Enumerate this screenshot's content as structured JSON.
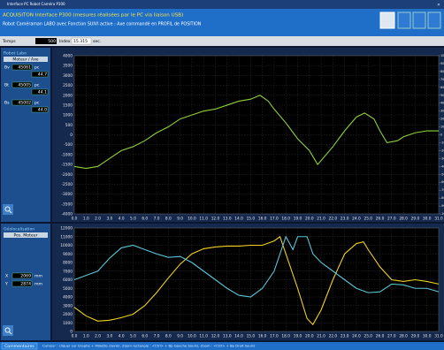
{
  "window": {
    "title": "Interface PC Robot Caméra P300"
  },
  "header": {
    "line1": "ACQUISITON Interface P300 (mesures réalisées par le PC via liaison USB)",
    "line2": "Robot Caméraman LABO avec Fonction SUIVI active : Axe commandé en PROFIL de POSITION"
  },
  "time_bar": {
    "temps_label": "Temps",
    "temps_value": "500",
    "index_label": "Index",
    "index_value": "15.315",
    "unit": "sec."
  },
  "robot_panel": {
    "title": "Robot Labo",
    "subtitle": "Moteur / Axe",
    "rows": [
      {
        "label": "Bv",
        "value": "45061",
        "unit": "pc",
        "sub": "44.7"
      },
      {
        "label": "Bt",
        "value": "45005",
        "unit": "pc",
        "sub": "44.1"
      },
      {
        "label": "Bs",
        "value": "45002",
        "unit": "pc",
        "sub": "44.0"
      }
    ]
  },
  "geo_panel": {
    "title": "Géolocalisation",
    "subtitle": "Pos. Moteur",
    "rows": [
      {
        "label": "X",
        "value": "2069",
        "unit": "mm"
      },
      {
        "label": "Y",
        "value": "2874",
        "unit": "mm"
      }
    ]
  },
  "status": {
    "button": "Commentaires",
    "hint": "Curseur : cliquer sur Graphe + Molette clavier, Zoom rectangle : <Ctrl> + Bp Gauche Souris, Zoom : <Ctrl> + Bp Droit Souris"
  },
  "chart_data": [
    {
      "type": "line",
      "grid": true,
      "xlim": [
        0,
        31
      ],
      "xticks": [
        {
          "value": 0,
          "label": "0.0"
        },
        {
          "value": 1,
          "label": "1.0"
        },
        {
          "value": 2,
          "label": "2.0"
        },
        {
          "value": 3,
          "label": "3.0"
        },
        {
          "value": 4,
          "label": "4.0"
        },
        {
          "value": 5,
          "label": "5.0"
        },
        {
          "value": 6,
          "label": "6.0"
        },
        {
          "value": 7,
          "label": "7.0"
        },
        {
          "value": 8,
          "label": "8.0"
        },
        {
          "value": 9,
          "label": "9.0"
        },
        {
          "value": 10,
          "label": "10.0"
        },
        {
          "value": 11,
          "label": "11.0"
        },
        {
          "value": 12,
          "label": "12.0"
        },
        {
          "value": 13,
          "label": "13.0"
        },
        {
          "value": 14,
          "label": "14.0"
        },
        {
          "value": 15,
          "label": "15.0"
        },
        {
          "value": 16,
          "label": "16.0"
        },
        {
          "value": 17,
          "label": "17.0"
        },
        {
          "value": 18,
          "label": "18.0"
        },
        {
          "value": 19,
          "label": "19.0"
        },
        {
          "value": 20,
          "label": "20.0"
        },
        {
          "value": 21,
          "label": "21.0"
        },
        {
          "value": 22,
          "label": "22.0"
        },
        {
          "value": 23,
          "label": "23.0"
        },
        {
          "value": 24,
          "label": "24.0"
        },
        {
          "value": 25,
          "label": "25.0"
        },
        {
          "value": 26,
          "label": "26.0"
        },
        {
          "value": 27,
          "label": "27.0"
        },
        {
          "value": 28,
          "label": "28.0"
        },
        {
          "value": 29,
          "label": "29.0"
        },
        {
          "value": 30,
          "label": "30.0"
        },
        {
          "value": 31,
          "label": "31.0"
        }
      ],
      "ylim": [
        -4000,
        4000
      ],
      "yticks": [
        4000,
        3500,
        3000,
        2500,
        2000,
        1500,
        1000,
        500,
        0,
        -500,
        -1000,
        -1500,
        -2000,
        -2500,
        -3000,
        -3500,
        -4000
      ],
      "y2lim": [
        -10000,
        10000
      ],
      "y2ticks": [
        -10000,
        -9000,
        -8000,
        -7000,
        -6000,
        -5000,
        -4000,
        -3000,
        -2000,
        -1000,
        0,
        1000,
        2000,
        3000,
        4000,
        5000,
        6000,
        7000,
        8000,
        9000,
        10000
      ],
      "series": [
        {
          "color": "#8fd13a",
          "x": [
            0,
            1,
            2,
            3,
            4,
            5,
            6,
            7,
            8,
            9,
            10,
            11,
            12,
            13,
            14,
            15,
            15.8,
            16.5,
            17,
            18,
            19,
            20,
            20.7,
            21,
            22,
            23,
            24,
            24.7,
            25.5,
            26,
            26.6,
            27.5,
            28,
            29,
            30,
            31
          ],
          "values": [
            -1600,
            -1700,
            -1600,
            -1200,
            -800,
            -600,
            -300,
            100,
            400,
            800,
            1000,
            1200,
            1300,
            1500,
            1700,
            1800,
            2000,
            1700,
            1300,
            600,
            -200,
            -800,
            -1500,
            -1300,
            -600,
            200,
            900,
            1100,
            800,
            200,
            -400,
            -300,
            -100,
            100,
            200,
            200
          ]
        }
      ]
    },
    {
      "type": "line",
      "grid": true,
      "xlim": [
        0,
        31
      ],
      "xticks": [
        {
          "value": 0,
          "label": "0.0"
        },
        {
          "value": 1,
          "label": "1.0"
        },
        {
          "value": 2,
          "label": "2.0"
        },
        {
          "value": 3,
          "label": "3.0"
        },
        {
          "value": 4,
          "label": "4.0"
        },
        {
          "value": 5,
          "label": "5.0"
        },
        {
          "value": 6,
          "label": "6.0"
        },
        {
          "value": 7,
          "label": "7.0"
        },
        {
          "value": 8,
          "label": "8.0"
        },
        {
          "value": 9,
          "label": "9.0"
        },
        {
          "value": 10,
          "label": "10.0"
        },
        {
          "value": 11,
          "label": "11.0"
        },
        {
          "value": 12,
          "label": "12.0"
        },
        {
          "value": 13,
          "label": "13.0"
        },
        {
          "value": 14,
          "label": "14.0"
        },
        {
          "value": 15,
          "label": "15.0"
        },
        {
          "value": 16,
          "label": "16.0"
        },
        {
          "value": 17,
          "label": "17.0"
        },
        {
          "value": 18,
          "label": "18.0"
        },
        {
          "value": 19,
          "label": "19.0"
        },
        {
          "value": 20,
          "label": "20.0"
        },
        {
          "value": 21,
          "label": "21.0"
        },
        {
          "value": 22,
          "label": "22.0"
        },
        {
          "value": 23,
          "label": "23.0"
        },
        {
          "value": 24,
          "label": "24.0"
        },
        {
          "value": 25,
          "label": "25.0"
        },
        {
          "value": 26,
          "label": "26.0"
        },
        {
          "value": 27,
          "label": "27.0"
        },
        {
          "value": 28,
          "label": "28.0"
        },
        {
          "value": 29,
          "label": "29.0"
        },
        {
          "value": 30,
          "label": "30.0"
        },
        {
          "value": 31,
          "label": "31.0"
        }
      ],
      "ylim": [
        0,
        12000
      ],
      "yticks": [
        12000,
        11000,
        10000,
        9000,
        8000,
        7000,
        6000,
        5000,
        4000,
        3000,
        2000,
        1000,
        0
      ],
      "series": [
        {
          "color": "#f2d21a",
          "x": [
            0,
            1,
            2,
            3,
            4,
            5,
            6,
            7,
            8,
            9,
            10,
            11,
            12,
            13,
            14,
            15,
            16,
            17,
            17.5,
            18,
            19,
            19.8,
            20.3,
            21,
            22,
            23,
            24,
            24.6,
            25,
            26,
            27,
            28,
            29,
            30,
            31
          ],
          "values": [
            2800,
            1800,
            1200,
            1300,
            1600,
            2000,
            3000,
            4500,
            6200,
            7800,
            9000,
            9600,
            9800,
            9900,
            9900,
            10000,
            10000,
            10500,
            11000,
            9000,
            5000,
            1500,
            800,
            2500,
            6000,
            9000,
            10200,
            10400,
            9500,
            7500,
            6000,
            5800,
            6000,
            5800,
            5500
          ]
        },
        {
          "color": "#5cc4d8",
          "x": [
            0,
            1,
            2,
            3,
            4,
            5,
            6,
            7,
            8,
            9,
            10,
            11,
            12,
            13,
            14,
            15,
            16,
            17,
            17.5,
            18,
            18.6,
            19,
            19.8,
            20.3,
            21,
            22,
            23,
            24,
            25,
            26,
            27,
            28,
            29,
            30,
            31
          ],
          "values": [
            6000,
            6500,
            7000,
            8500,
            9700,
            10000,
            9500,
            9000,
            8600,
            8700,
            8000,
            7000,
            6000,
            5000,
            4200,
            4000,
            5000,
            7000,
            9000,
            11000,
            9500,
            11000,
            11000,
            9000,
            8000,
            7000,
            6000,
            5000,
            4500,
            4600,
            5500,
            5400,
            5000,
            5000,
            4600
          ]
        }
      ]
    }
  ]
}
